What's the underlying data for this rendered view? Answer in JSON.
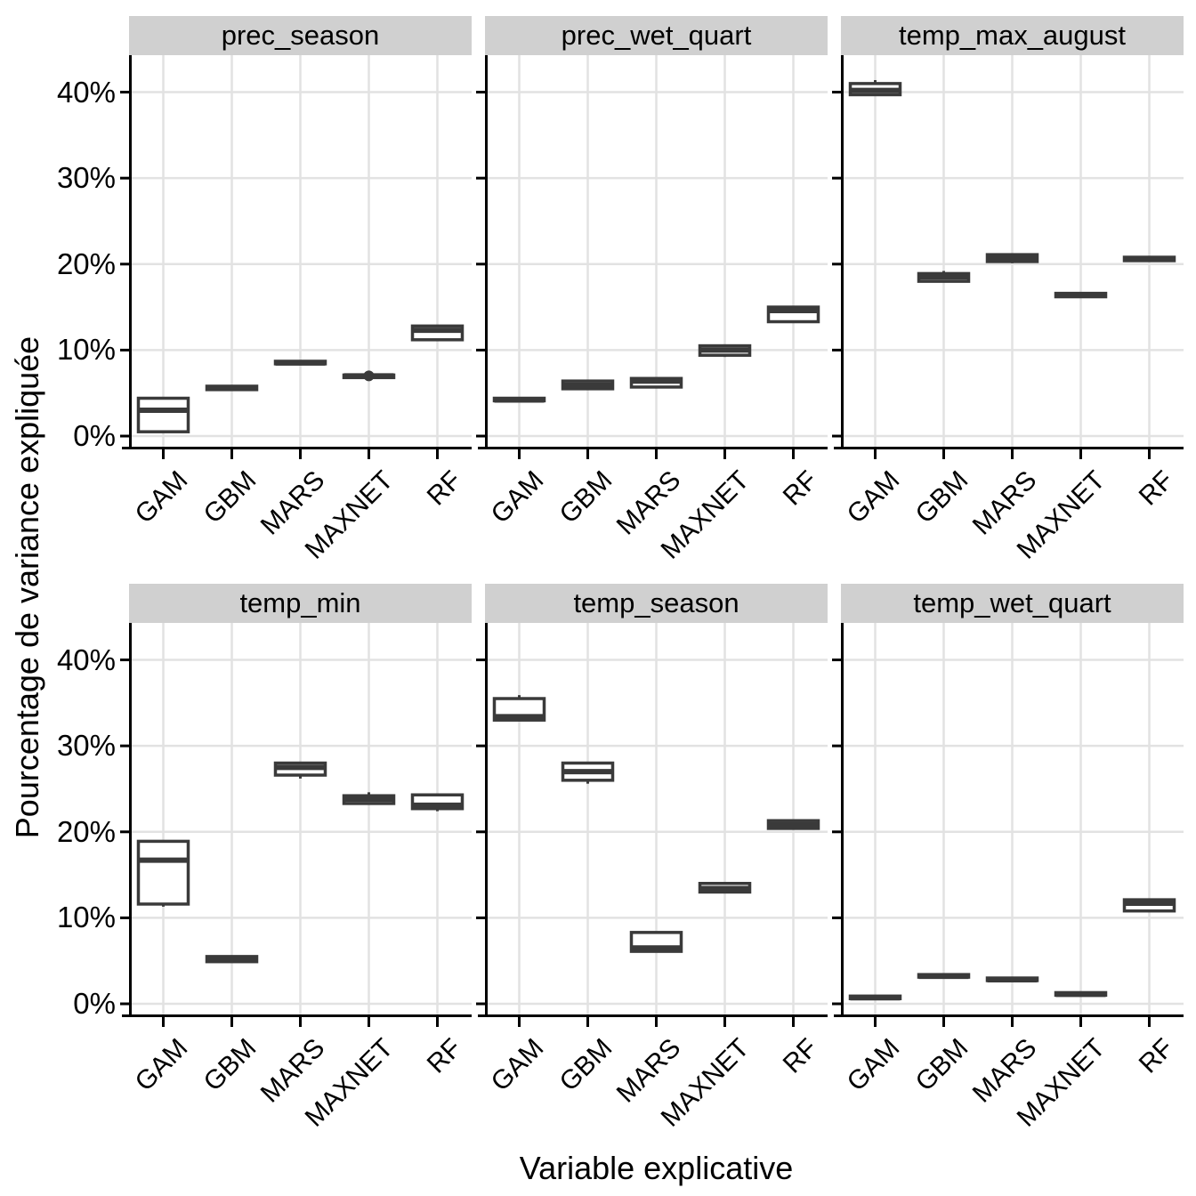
{
  "colors": {
    "background": "#ffffff",
    "strip_bg": "#d0d0d0",
    "gridline": "#e2e2e2",
    "axis": "#000000",
    "box_stroke": "#3a3a3a",
    "box_fill": "#ffffff",
    "text": "#000000"
  },
  "chart_data": {
    "type": "boxplot",
    "title": "",
    "xlabel": "Variable explicative",
    "ylabel": "Pourcentage de variance expliquée",
    "categories": [
      "GAM",
      "GBM",
      "MARS",
      "MAXNET",
      "RF"
    ],
    "y_ticks": [
      {
        "value": 0,
        "label": "0%"
      },
      {
        "value": 10,
        "label": "10%"
      },
      {
        "value": 20,
        "label": "20%"
      },
      {
        "value": 30,
        "label": "30%"
      },
      {
        "value": 40,
        "label": "40%"
      }
    ],
    "ylim": [
      -1.55,
      44.3
    ],
    "grid": true,
    "legend": "none",
    "facets": [
      {
        "label": "prec_season",
        "boxes": [
          {
            "category": "GAM",
            "min": 0.5,
            "q1": 0.5,
            "med": 3.0,
            "q3": 4.4,
            "max": 4.4,
            "outliers": []
          },
          {
            "category": "GBM",
            "min": 5.4,
            "q1": 5.4,
            "med": 5.6,
            "q3": 5.8,
            "max": 5.8,
            "outliers": []
          },
          {
            "category": "MARS",
            "min": 8.4,
            "q1": 8.4,
            "med": 8.5,
            "q3": 8.7,
            "max": 8.7,
            "outliers": []
          },
          {
            "category": "MAXNET",
            "min": 6.8,
            "q1": 6.8,
            "med": 7.0,
            "q3": 7.1,
            "max": 7.1,
            "outliers": [
              7.0
            ]
          },
          {
            "category": "RF",
            "min": 11.2,
            "q1": 11.2,
            "med": 12.3,
            "q3": 12.8,
            "max": 12.8,
            "outliers": []
          }
        ]
      },
      {
        "label": "prec_wet_quart",
        "boxes": [
          {
            "category": "GAM",
            "min": 4.1,
            "q1": 4.1,
            "med": 4.2,
            "q3": 4.4,
            "max": 4.4,
            "outliers": []
          },
          {
            "category": "GBM",
            "min": 5.5,
            "q1": 5.5,
            "med": 5.9,
            "q3": 6.4,
            "max": 6.4,
            "outliers": []
          },
          {
            "category": "MARS",
            "min": 5.7,
            "q1": 5.7,
            "med": 6.4,
            "q3": 6.7,
            "max": 6.7,
            "outliers": []
          },
          {
            "category": "MAXNET",
            "min": 9.2,
            "q1": 9.4,
            "med": 10.0,
            "q3": 10.5,
            "max": 10.5,
            "outliers": []
          },
          {
            "category": "RF",
            "min": 13.3,
            "q1": 13.3,
            "med": 14.6,
            "q3": 15.0,
            "max": 15.0,
            "outliers": []
          }
        ]
      },
      {
        "label": "temp_max_august",
        "boxes": [
          {
            "category": "GAM",
            "min": 39.7,
            "q1": 39.7,
            "med": 40.2,
            "q3": 41.0,
            "max": 41.4,
            "outliers": []
          },
          {
            "category": "GBM",
            "min": 18.0,
            "q1": 18.0,
            "med": 18.5,
            "q3": 18.9,
            "max": 19.2,
            "outliers": []
          },
          {
            "category": "MARS",
            "min": 20.1,
            "q1": 20.3,
            "med": 20.7,
            "q3": 21.1,
            "max": 21.1,
            "outliers": []
          },
          {
            "category": "MAXNET",
            "min": 16.2,
            "q1": 16.2,
            "med": 16.4,
            "q3": 16.6,
            "max": 16.6,
            "outliers": []
          },
          {
            "category": "RF",
            "min": 20.4,
            "q1": 20.4,
            "med": 20.6,
            "q3": 20.8,
            "max": 20.8,
            "outliers": []
          }
        ]
      },
      {
        "label": "temp_min",
        "boxes": [
          {
            "category": "GAM",
            "min": 11.3,
            "q1": 11.6,
            "med": 16.7,
            "q3": 18.9,
            "max": 18.9,
            "outliers": []
          },
          {
            "category": "GBM",
            "min": 4.9,
            "q1": 4.9,
            "med": 5.1,
            "q3": 5.5,
            "max": 5.5,
            "outliers": []
          },
          {
            "category": "MARS",
            "min": 26.2,
            "q1": 26.6,
            "med": 27.5,
            "q3": 28.0,
            "max": 28.0,
            "outliers": []
          },
          {
            "category": "MAXNET",
            "min": 23.3,
            "q1": 23.3,
            "med": 23.8,
            "q3": 24.2,
            "max": 24.6,
            "outliers": []
          },
          {
            "category": "RF",
            "min": 22.4,
            "q1": 22.7,
            "med": 23.1,
            "q3": 24.3,
            "max": 24.3,
            "outliers": []
          }
        ]
      },
      {
        "label": "temp_season",
        "boxes": [
          {
            "category": "GAM",
            "min": 33.0,
            "q1": 33.0,
            "med": 33.4,
            "q3": 35.5,
            "max": 35.9,
            "outliers": []
          },
          {
            "category": "GBM",
            "min": 25.6,
            "q1": 26.0,
            "med": 27.0,
            "q3": 28.0,
            "max": 28.0,
            "outliers": []
          },
          {
            "category": "MARS",
            "min": 6.1,
            "q1": 6.1,
            "med": 6.5,
            "q3": 8.3,
            "max": 8.3,
            "outliers": []
          },
          {
            "category": "MAXNET",
            "min": 13.0,
            "q1": 13.0,
            "med": 13.4,
            "q3": 14.0,
            "max": 14.0,
            "outliers": []
          },
          {
            "category": "RF",
            "min": 20.4,
            "q1": 20.4,
            "med": 20.8,
            "q3": 21.3,
            "max": 21.3,
            "outliers": []
          }
        ]
      },
      {
        "label": "temp_wet_quart",
        "boxes": [
          {
            "category": "GAM",
            "min": 0.6,
            "q1": 0.6,
            "med": 0.7,
            "q3": 0.9,
            "max": 0.9,
            "outliers": []
          },
          {
            "category": "GBM",
            "min": 3.1,
            "q1": 3.1,
            "med": 3.2,
            "q3": 3.4,
            "max": 3.4,
            "outliers": []
          },
          {
            "category": "MARS",
            "min": 2.7,
            "q1": 2.7,
            "med": 2.8,
            "q3": 3.0,
            "max": 3.0,
            "outliers": []
          },
          {
            "category": "MAXNET",
            "min": 1.0,
            "q1": 1.0,
            "med": 1.1,
            "q3": 1.3,
            "max": 1.3,
            "outliers": []
          },
          {
            "category": "RF",
            "min": 10.8,
            "q1": 10.8,
            "med": 11.7,
            "q3": 12.1,
            "max": 12.1,
            "outliers": []
          }
        ]
      }
    ]
  }
}
